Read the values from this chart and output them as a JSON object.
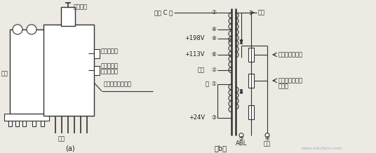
{
  "bg_color": "#ede9e3",
  "line_color": "#333333",
  "text_color": "#222222",
  "font_size": 6.0,
  "title_a": "(a)",
  "title_b": "（b）",
  "label_xianquan": "线圈",
  "label_jujiao": "聚焦电位器",
  "label_jiasuj": "加速极电压",
  "label_tiaozheng": "调整电位器",
  "label_jujiao_out": "聚焦电压输出引线",
  "label_yinjiao": "引脚",
  "label_gaoya_line": "高压引线",
  "label_hangguanC": "行管 C 极",
  "label_gaoya": "高压",
  "label_198": "+198V",
  "label_113": "+113V",
  "label_dengsi": "灯丝",
  "label_di": "地",
  "label_24v": "+24V",
  "label_ABL": "ABL",
  "label_jiejie": "接地",
  "label_tiao_jujiao": "调聚焦的电位器",
  "label_tiao_jiasu": "调加速极电压的",
  "label_tiao_jiasu2": "电位器",
  "node7": "⑦",
  "node8": "⑧",
  "node9": "⑨",
  "node6": "⑥",
  "node2": "②",
  "node1": "①",
  "node3": "③",
  "node5": "⑤",
  "node4": "④"
}
